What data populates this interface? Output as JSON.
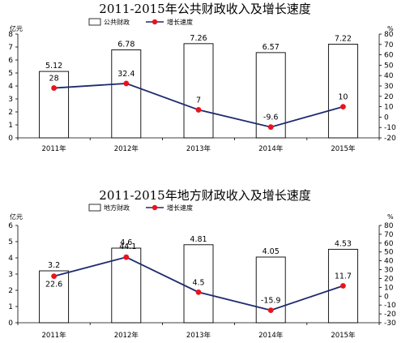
{
  "chart_data": [
    {
      "type": "bar",
      "title": "2011-2015年公共财政收入及增长速度",
      "categories": [
        "2011年",
        "2012年",
        "2013年",
        "2014年",
        "2015年"
      ],
      "left_unit": "亿元",
      "right_unit": "%",
      "left_ylim": [
        0,
        8
      ],
      "left_ticks": [
        0,
        1,
        2,
        3,
        4,
        5,
        6,
        7,
        8
      ],
      "right_ylim": [
        -20,
        80
      ],
      "right_ticks": [
        -20,
        -10,
        0,
        10,
        20,
        30,
        40,
        50,
        60,
        70,
        80
      ],
      "series": [
        {
          "name": "公共财政",
          "kind": "bar",
          "axis": "left",
          "values": [
            5.12,
            6.78,
            7.26,
            6.57,
            7.22
          ],
          "labels": [
            "5.12",
            "6.78",
            "7.26",
            "6.57",
            "7.22"
          ]
        },
        {
          "name": "增长速度",
          "kind": "line",
          "axis": "right",
          "values": [
            28,
            32.4,
            7,
            -9.6,
            10
          ],
          "labels": [
            "28",
            "32.4",
            "7",
            "-9.6",
            "10"
          ]
        }
      ],
      "colors": {
        "bar_fill": "#ffffff",
        "bar_stroke": "#000000",
        "line": "#1f2a6e",
        "marker": "#e8141d"
      },
      "legend_position": "top"
    },
    {
      "type": "bar",
      "title": "2011-2015年地方财政收入及增长速度",
      "categories": [
        "2011年",
        "2012年",
        "2013年",
        "2014年",
        "2015年"
      ],
      "left_unit": "亿元",
      "right_unit": "%",
      "left_ylim": [
        0,
        6
      ],
      "left_ticks": [
        0,
        1,
        2,
        3,
        4,
        5,
        6
      ],
      "right_ylim": [
        -30,
        80
      ],
      "right_ticks": [
        -30,
        -20,
        -10,
        0,
        10,
        20,
        30,
        40,
        50,
        60,
        70,
        80
      ],
      "series": [
        {
          "name": "地方财政",
          "kind": "bar",
          "axis": "left",
          "values": [
            3.2,
            4.6,
            4.81,
            4.05,
            4.53
          ],
          "labels": [
            "3.2",
            "4.6",
            "4.81",
            "4.05",
            "4.53"
          ]
        },
        {
          "name": "增长速度",
          "kind": "line",
          "axis": "right",
          "values": [
            22.6,
            44.1,
            4.5,
            -15.9,
            11.7
          ],
          "labels": [
            "22.6",
            "44.1",
            "4.5",
            "-15.9",
            "11.7"
          ]
        }
      ],
      "colors": {
        "bar_fill": "#ffffff",
        "bar_stroke": "#000000",
        "line": "#1f2a6e",
        "marker": "#e8141d"
      },
      "legend_position": "top"
    }
  ]
}
